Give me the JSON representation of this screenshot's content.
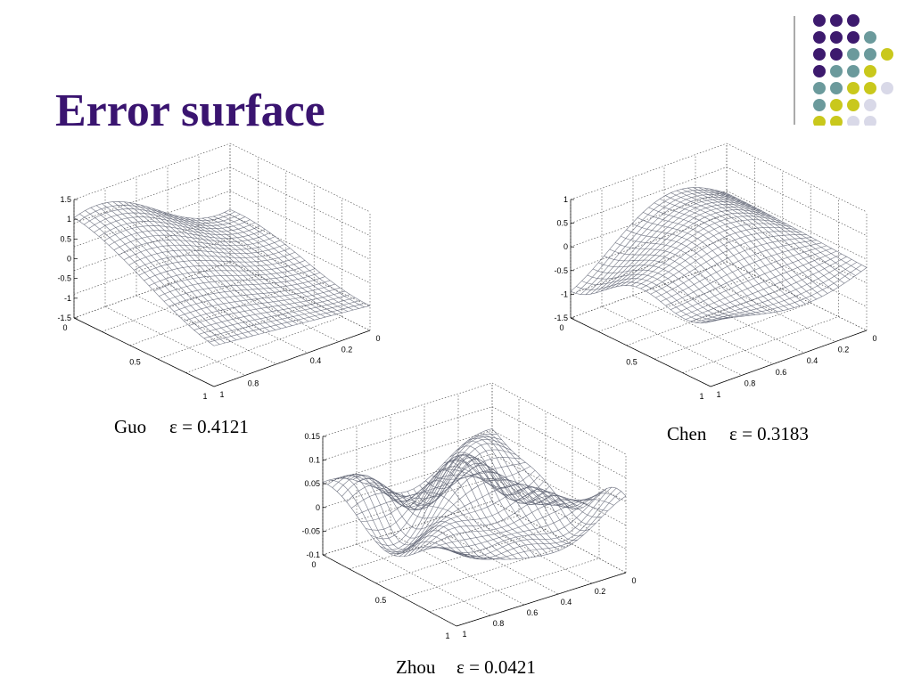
{
  "title": "Error surface",
  "plots": [
    {
      "caption": {
        "name": "Guo",
        "error": "ε = 0.4121"
      },
      "z_ticks": [
        "1.5",
        "1",
        "0.5",
        "0",
        "-0.5",
        "-1",
        "-1.5"
      ],
      "x_ticks": [
        "0",
        "0.5",
        "1"
      ],
      "y_ticks": [
        "1",
        "0.8",
        "0.4",
        "0.2",
        "0"
      ]
    },
    {
      "caption": {
        "name": "Chen",
        "error": "ε = 0.3183"
      },
      "z_ticks": [
        "1",
        "0.5",
        "0",
        "-0.5",
        "-1",
        "-1.5"
      ],
      "x_ticks": [
        "0",
        "0.5",
        "1"
      ],
      "y_ticks": [
        "1",
        "0.8",
        "0.6",
        "0.4",
        "0.2",
        "0"
      ]
    },
    {
      "caption": {
        "name": "Zhou",
        "error": "ε = 0.0421"
      },
      "z_ticks": [
        "0.15",
        "0.1",
        "0.05",
        "0",
        "-0.05",
        "-0.1"
      ],
      "x_ticks": [
        "0",
        "0.5",
        "1"
      ],
      "y_ticks": [
        "1",
        "0.8",
        "0.6",
        "0.4",
        "0.2",
        "0"
      ]
    }
  ]
}
